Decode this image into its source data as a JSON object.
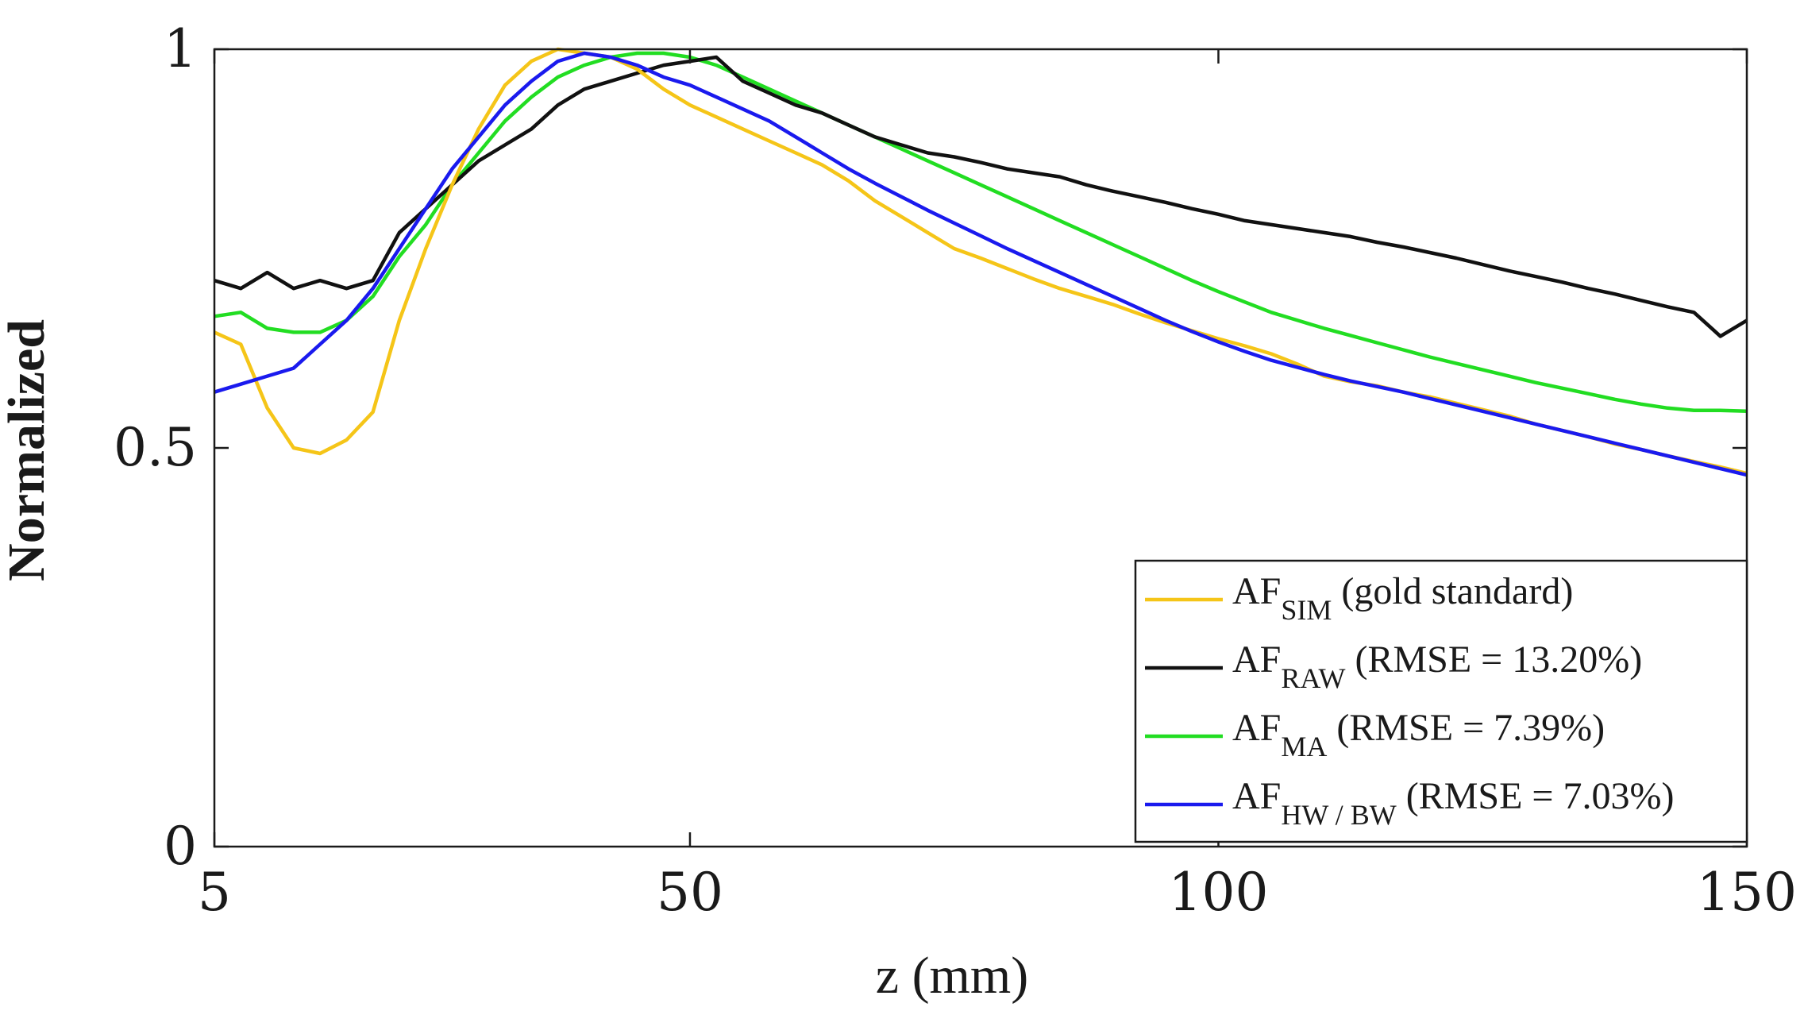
{
  "chart_data": {
    "type": "line",
    "xlabel": "z (mm)",
    "ylabel": "Normalized",
    "xlim": [
      5,
      150
    ],
    "ylim": [
      0,
      1
    ],
    "xticks": [
      5,
      50,
      100,
      150
    ],
    "yticks": [
      0,
      0.5,
      1
    ],
    "xtick_labels": [
      "5",
      "50",
      "100",
      "150"
    ],
    "ytick_labels": [
      "0",
      "0.5",
      "1"
    ],
    "legend_position": "bottom-right",
    "x": [
      5,
      7.5,
      10,
      12.5,
      15,
      17.5,
      20,
      22.5,
      25,
      27.5,
      30,
      32.5,
      35,
      37.5,
      40,
      42.5,
      45,
      47.5,
      50,
      52.5,
      55,
      57.5,
      60,
      62.5,
      65,
      67.5,
      70,
      72.5,
      75,
      77.5,
      80,
      82.5,
      85,
      87.5,
      90,
      92.5,
      95,
      97.5,
      100,
      102.5,
      105,
      107.5,
      110,
      112.5,
      115,
      117.5,
      120,
      122.5,
      125,
      127.5,
      130,
      132.5,
      135,
      137.5,
      140,
      142.5,
      145,
      147.5,
      150
    ],
    "series": [
      {
        "name": "AF_SIM",
        "legend_main": "AF",
        "legend_sub": "SIM",
        "legend_suffix": " (gold standard)",
        "color": "#f5c518",
        "values": [
          0.645,
          0.63,
          0.55,
          0.5,
          0.493,
          0.51,
          0.545,
          0.66,
          0.75,
          0.83,
          0.9,
          0.955,
          0.985,
          1.0,
          0.995,
          0.99,
          0.975,
          0.95,
          0.93,
          0.915,
          0.9,
          0.885,
          0.87,
          0.855,
          0.835,
          0.81,
          0.79,
          0.77,
          0.75,
          0.738,
          0.725,
          0.712,
          0.7,
          0.69,
          0.68,
          0.668,
          0.657,
          0.647,
          0.637,
          0.628,
          0.618,
          0.605,
          0.59,
          0.583,
          0.578,
          0.57,
          0.564,
          0.556,
          0.548,
          0.54,
          0.53,
          0.522,
          0.514,
          0.505,
          0.498,
          0.49,
          0.483,
          0.476,
          0.468
        ]
      },
      {
        "name": "AF_RAW",
        "legend_main": "AF",
        "legend_sub": "RAW",
        "legend_suffix": " (RMSE = 13.20%)",
        "color": "#111111",
        "values": [
          0.71,
          0.7,
          0.72,
          0.7,
          0.71,
          0.7,
          0.71,
          0.77,
          0.8,
          0.83,
          0.86,
          0.88,
          0.9,
          0.93,
          0.95,
          0.96,
          0.97,
          0.98,
          0.985,
          0.99,
          0.96,
          0.945,
          0.93,
          0.92,
          0.905,
          0.89,
          0.88,
          0.87,
          0.865,
          0.858,
          0.85,
          0.845,
          0.84,
          0.83,
          0.822,
          0.815,
          0.808,
          0.8,
          0.793,
          0.785,
          0.78,
          0.775,
          0.77,
          0.765,
          0.758,
          0.752,
          0.745,
          0.738,
          0.73,
          0.722,
          0.715,
          0.708,
          0.7,
          0.693,
          0.685,
          0.677,
          0.67,
          0.64,
          0.66
        ]
      },
      {
        "name": "AF_MA",
        "legend_main": "AF",
        "legend_sub": "MA",
        "legend_suffix": " (RMSE = 7.39%)",
        "color": "#22dd22",
        "values": [
          0.665,
          0.67,
          0.65,
          0.645,
          0.645,
          0.66,
          0.69,
          0.74,
          0.78,
          0.83,
          0.87,
          0.91,
          0.94,
          0.965,
          0.98,
          0.99,
          0.995,
          0.995,
          0.99,
          0.98,
          0.965,
          0.95,
          0.935,
          0.92,
          0.905,
          0.89,
          0.875,
          0.86,
          0.845,
          0.83,
          0.815,
          0.8,
          0.785,
          0.77,
          0.755,
          0.74,
          0.725,
          0.71,
          0.696,
          0.683,
          0.67,
          0.66,
          0.65,
          0.641,
          0.632,
          0.623,
          0.614,
          0.606,
          0.598,
          0.59,
          0.582,
          0.575,
          0.568,
          0.561,
          0.555,
          0.55,
          0.547,
          0.547,
          0.546
        ]
      },
      {
        "name": "AF_HW/BW",
        "legend_main": "AF",
        "legend_sub": "HW / BW",
        "legend_suffix": " (RMSE = 7.03%)",
        "color": "#1a1aee",
        "values": [
          0.57,
          0.58,
          0.59,
          0.6,
          0.63,
          0.66,
          0.7,
          0.75,
          0.8,
          0.85,
          0.89,
          0.93,
          0.96,
          0.985,
          0.995,
          0.99,
          0.98,
          0.965,
          0.955,
          0.94,
          0.925,
          0.91,
          0.89,
          0.87,
          0.85,
          0.832,
          0.815,
          0.798,
          0.782,
          0.766,
          0.75,
          0.735,
          0.72,
          0.705,
          0.69,
          0.675,
          0.66,
          0.646,
          0.633,
          0.621,
          0.61,
          0.601,
          0.592,
          0.584,
          0.577,
          0.57,
          0.562,
          0.554,
          0.546,
          0.538,
          0.53,
          0.522,
          0.514,
          0.506,
          0.498,
          0.49,
          0.482,
          0.474,
          0.466
        ]
      }
    ]
  }
}
